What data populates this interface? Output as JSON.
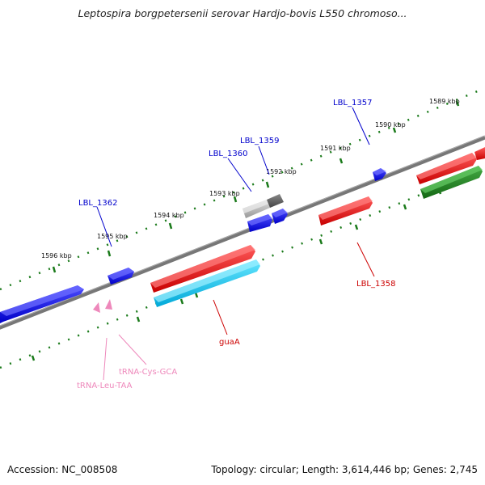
{
  "title": "Leptospira borgpetersenii serovar Hardjo-bovis L550 chromoso...",
  "accession_text": "Accession: NC_008508",
  "stats_text": "Topology: circular; Length: 3,614,446 bp; Genes: 2,745",
  "scale_labels": [
    "1589 kbp",
    "1590 kbp",
    "1591 kbp",
    "1592 kbp",
    "1593 kbp",
    "1594 kbp",
    "1595 kbp",
    "1596 kbp"
  ],
  "gene_labels": [
    {
      "name": "LBL_1357",
      "color": "#0000cc"
    },
    {
      "name": "LBL_1359",
      "color": "#0000cc"
    },
    {
      "name": "LBL_1360",
      "color": "#0000cc"
    },
    {
      "name": "LBL_1362",
      "color": "#0000cc"
    },
    {
      "name": "LBL_1358",
      "color": "#cc0000"
    },
    {
      "name": "guaA",
      "color": "#cc0000"
    },
    {
      "name": "tRNA-Cys-GCA",
      "color": "#ee88bb"
    },
    {
      "name": "tRNA-Leu-TAA",
      "color": "#ee88bb"
    }
  ],
  "colors": {
    "cds_forward": "#0000ff",
    "cds_reverse": "#ff0000",
    "cds_cyan": "#00ccff",
    "cds_green": "#228b22",
    "trna": "#ee88bb",
    "backbone": "#777777",
    "scale_ticks": "#1a7a1a",
    "selected": "#aaaaaa"
  }
}
